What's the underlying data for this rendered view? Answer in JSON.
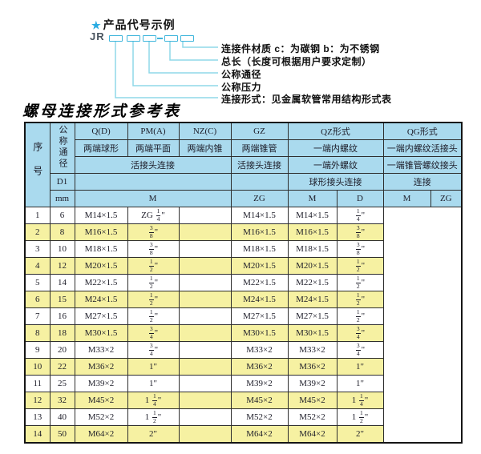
{
  "diagram": {
    "star": "★",
    "title": "产品代号示例",
    "prefix": "JR",
    "labels": [
      "连接件材质 c：为碳钢 b：为不锈钢",
      "总长（长度可根据用户要求定制）",
      "公称通径",
      "公称压力",
      "连接形式：见金属软管常用结构形式表"
    ]
  },
  "table_title": "螺母连接形式参考表",
  "table": {
    "header": {
      "seq": "序号",
      "dn": "公称通径",
      "d1": "D1",
      "mm": "mm",
      "row1": {
        "qd": "Q(D)",
        "pm": "PM(A)",
        "nz": "NZ(C)",
        "gz": "GZ",
        "qz": "QZ形式",
        "qg": "QG形式"
      },
      "row2": {
        "qd": "两端球形",
        "pm": "两端平面",
        "nz": "两端内锥",
        "gz": "两端锥管",
        "qz": "一端内螺纹",
        "qg": "一端内螺纹活接头"
      },
      "row3": {
        "left": "活接头连接",
        "gz": "活接头连接",
        "qz": "一端外螺纹",
        "qg": "一端锥管螺纹接头"
      },
      "row4": {
        "qz": "球形接头连接",
        "qg": "连接"
      },
      "row5": {
        "left": "M",
        "gz": "ZG",
        "qz_m": "M",
        "qz_d": "D",
        "qg_m": "M",
        "qg_zg": "ZG"
      }
    },
    "rows": [
      {
        "seq": "1",
        "dn": "6",
        "m": "M14×1.5",
        "zg": "ZG 1/4\"",
        "qz_m": "",
        "qz_d": "M14×1.5",
        "qg_m": "M14×1.5",
        "qg_zg": "1/4\""
      },
      {
        "seq": "2",
        "dn": "8",
        "m": "M16×1.5",
        "zg": "3/8\"",
        "qz_m": "",
        "qz_d": "M16×1.5",
        "qg_m": "M16×1.5",
        "qg_zg": "3/8\""
      },
      {
        "seq": "3",
        "dn": "10",
        "m": "M18×1.5",
        "zg": "3/8\"",
        "qz_m": "",
        "qz_d": "M18×1.5",
        "qg_m": "M18×1.5",
        "qg_zg": "3/8\""
      },
      {
        "seq": "4",
        "dn": "12",
        "m": "M20×1.5",
        "zg": "1/2\"",
        "qz_m": "",
        "qz_d": "M20×1.5",
        "qg_m": "M20×1.5",
        "qg_zg": "1/2\""
      },
      {
        "seq": "5",
        "dn": "14",
        "m": "M22×1.5",
        "zg": "1/2\"",
        "qz_m": "",
        "qz_d": "M22×1.5",
        "qg_m": "M22×1.5",
        "qg_zg": "1/2\""
      },
      {
        "seq": "6",
        "dn": "15",
        "m": "M24×1.5",
        "zg": "1/2\"",
        "qz_m": "",
        "qz_d": "M24×1.5",
        "qg_m": "M24×1.5",
        "qg_zg": "1/2\""
      },
      {
        "seq": "7",
        "dn": "16",
        "m": "M27×1.5",
        "zg": "1/2\"",
        "qz_m": "",
        "qz_d": "M27×1.5",
        "qg_m": "M27×1.5",
        "qg_zg": "1/2\""
      },
      {
        "seq": "8",
        "dn": "18",
        "m": "M30×1.5",
        "zg": "3/4\"",
        "qz_m": "",
        "qz_d": "M30×1.5",
        "qg_m": "M30×1.5",
        "qg_zg": "3/4\""
      },
      {
        "seq": "9",
        "dn": "20",
        "m": "M33×2",
        "zg": "3/4\"",
        "qz_m": "",
        "qz_d": "M33×2",
        "qg_m": "M33×2",
        "qg_zg": "3/4\""
      },
      {
        "seq": "10",
        "dn": "22",
        "m": "M36×2",
        "zg": "1\"",
        "qz_m": "",
        "qz_d": "M36×2",
        "qg_m": "M36×2",
        "qg_zg": "1\""
      },
      {
        "seq": "11",
        "dn": "25",
        "m": "M39×2",
        "zg": "1\"",
        "qz_m": "",
        "qz_d": "M39×2",
        "qg_m": "M39×2",
        "qg_zg": "1\""
      },
      {
        "seq": "12",
        "dn": "32",
        "m": "M45×2",
        "zg": "1 1/4\"",
        "qz_m": "",
        "qz_d": "M45×2",
        "qg_m": "M45×2",
        "qg_zg": "1 1/4\""
      },
      {
        "seq": "13",
        "dn": "40",
        "m": "M52×2",
        "zg": "1 1/2\"",
        "qz_m": "",
        "qz_d": "M52×2",
        "qg_m": "M52×2",
        "qg_zg": "1 1/2\""
      },
      {
        "seq": "14",
        "dn": "50",
        "m": "M64×2",
        "zg": "2\"",
        "qz_m": "",
        "qz_d": "M64×2",
        "qg_m": "M64×2",
        "qg_zg": "2\""
      }
    ]
  },
  "colors": {
    "header_blue": "#aadaee",
    "row_yellow": "#f6f1a2",
    "line_cyan": "#8fd8e8",
    "box_cyan": "#3fb6dc",
    "star_blue": "#29abe2"
  }
}
